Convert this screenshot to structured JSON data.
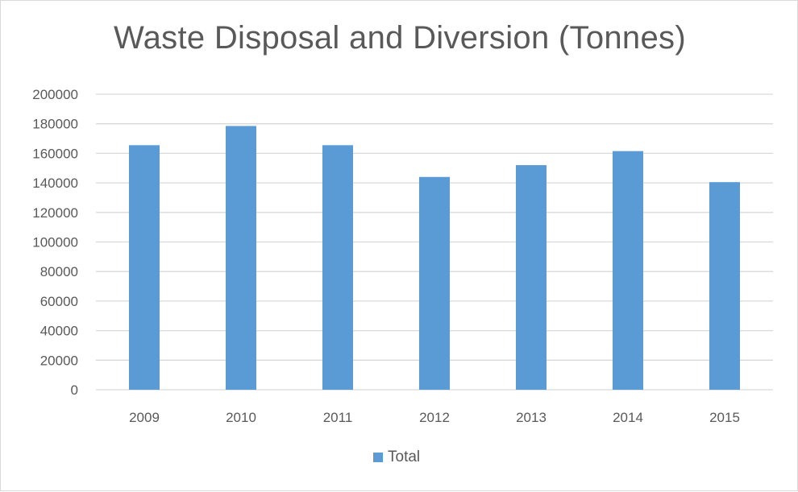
{
  "chart_data": {
    "type": "bar",
    "title": "Waste Disposal and Diversion (Tonnes)",
    "categories": [
      "2009",
      "2010",
      "2011",
      "2012",
      "2013",
      "2014",
      "2015"
    ],
    "series": [
      {
        "name": "Total",
        "values": [
          165500,
          178500,
          165500,
          144000,
          152000,
          161500,
          140500
        ],
        "color": "#5b9bd5"
      }
    ],
    "ylim": [
      0,
      200000
    ],
    "yticks": [
      0,
      20000,
      40000,
      60000,
      80000,
      100000,
      120000,
      140000,
      160000,
      180000,
      200000
    ],
    "xlabel": "",
    "ylabel": "",
    "grid": true,
    "legend_position": "bottom",
    "gridline_color": "#d9d9d9"
  }
}
